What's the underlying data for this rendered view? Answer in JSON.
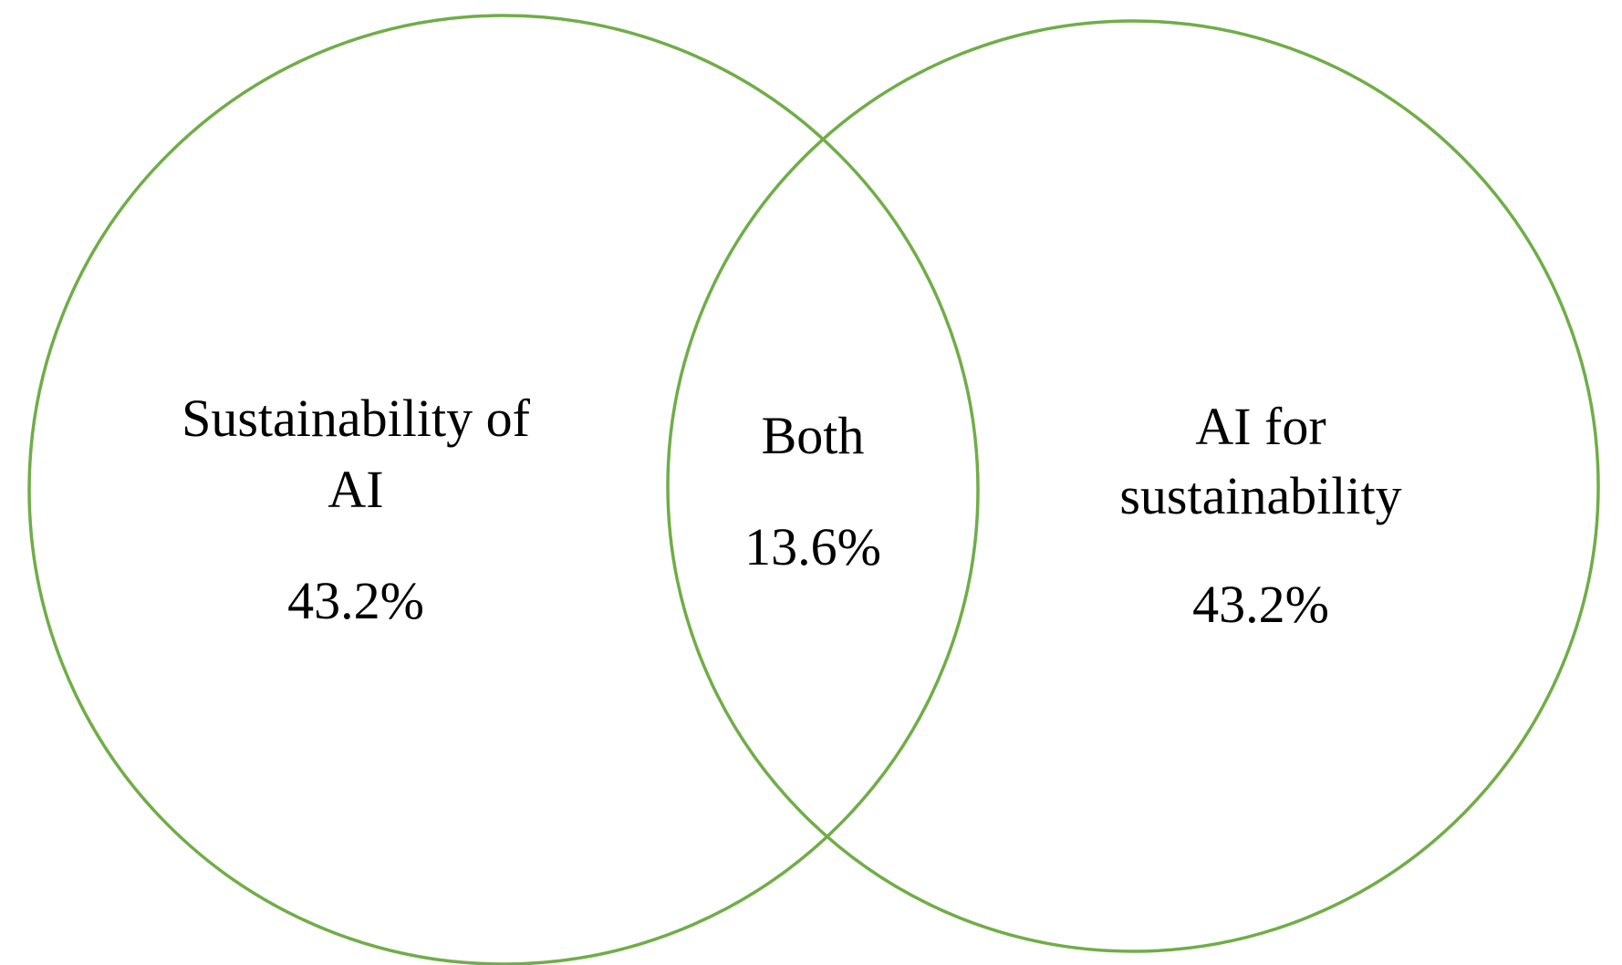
{
  "colors": {
    "circle_stroke": "#70AD47",
    "text": "#000000",
    "background": "#FFFFFF"
  },
  "sets": {
    "left": {
      "label_line1": "Sustainability of",
      "label_line2": "AI",
      "value": "43.2%"
    },
    "overlap": {
      "label": "Both",
      "value": "13.6%"
    },
    "right": {
      "label_line1": "AI for",
      "label_line2": "sustainability",
      "value": "43.2%"
    }
  }
}
